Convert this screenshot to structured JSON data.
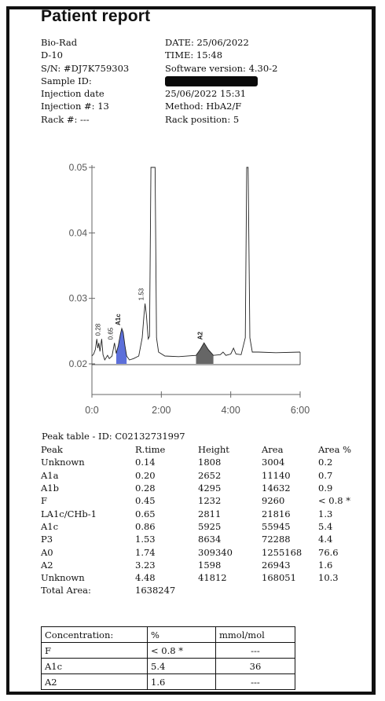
{
  "title": "Patient report",
  "info_left": [
    "Bio-Rad",
    "D-10",
    "S/N: #DJ7K759303",
    "Sample ID:",
    "Injection date",
    "Injection #: 13",
    "Rack #: ---"
  ],
  "info_right": [
    "DATE: 25/06/2022",
    "TIME:  15:48",
    "Software version: 4.30-2",
    "",
    "25/06/2022 15:31",
    "Method: HbA2/F",
    "Rack position: 5"
  ],
  "chart_data": {
    "type": "line",
    "y_ticks": [
      "0.05",
      "0.04",
      "0.03",
      "0.02"
    ],
    "y_values": [
      0.05,
      0.04,
      0.03,
      0.02
    ],
    "x_ticks": [
      "0:0",
      "2:00",
      "4:00",
      "6:00"
    ],
    "x_values": [
      0,
      2,
      4,
      6
    ],
    "xlim": [
      0,
      6
    ],
    "ylim": [
      0.015,
      0.05
    ],
    "baseline": 0.02,
    "x_unit": "minutes",
    "peak_labels": [
      {
        "label": "0.28",
        "x": 0.28
      },
      {
        "label": "0.65",
        "x": 0.65
      },
      {
        "label": "A1c",
        "x": 0.86
      },
      {
        "label": "1.53",
        "x": 1.53
      },
      {
        "label": "A2",
        "x": 3.23
      }
    ],
    "trace": [
      [
        0.0,
        0.0212
      ],
      [
        0.05,
        0.0215
      ],
      [
        0.1,
        0.0222
      ],
      [
        0.14,
        0.0238
      ],
      [
        0.17,
        0.0224
      ],
      [
        0.2,
        0.0232
      ],
      [
        0.23,
        0.0219
      ],
      [
        0.28,
        0.0238
      ],
      [
        0.32,
        0.0214
      ],
      [
        0.37,
        0.0206
      ],
      [
        0.45,
        0.0213
      ],
      [
        0.5,
        0.0208
      ],
      [
        0.58,
        0.0212
      ],
      [
        0.65,
        0.0232
      ],
      [
        0.7,
        0.0216
      ],
      [
        0.76,
        0.0228
      ],
      [
        0.82,
        0.0245
      ],
      [
        0.86,
        0.0254
      ],
      [
        0.9,
        0.0248
      ],
      [
        0.95,
        0.0228
      ],
      [
        1.0,
        0.0212
      ],
      [
        1.08,
        0.0206
      ],
      [
        1.2,
        0.0208
      ],
      [
        1.35,
        0.0212
      ],
      [
        1.45,
        0.024
      ],
      [
        1.5,
        0.0275
      ],
      [
        1.53,
        0.0292
      ],
      [
        1.57,
        0.0275
      ],
      [
        1.62,
        0.0238
      ],
      [
        1.66,
        0.0242
      ],
      [
        1.7,
        0.05
      ],
      [
        1.74,
        0.05
      ],
      [
        1.78,
        0.05
      ],
      [
        1.82,
        0.05
      ],
      [
        1.86,
        0.024
      ],
      [
        1.92,
        0.0218
      ],
      [
        2.1,
        0.0212
      ],
      [
        2.5,
        0.0211
      ],
      [
        3.0,
        0.0213
      ],
      [
        3.12,
        0.0222
      ],
      [
        3.23,
        0.0232
      ],
      [
        3.35,
        0.0222
      ],
      [
        3.5,
        0.0213
      ],
      [
        3.7,
        0.0214
      ],
      [
        3.78,
        0.0218
      ],
      [
        3.86,
        0.0213
      ],
      [
        4.0,
        0.0215
      ],
      [
        4.08,
        0.0224
      ],
      [
        4.15,
        0.0215
      ],
      [
        4.3,
        0.0214
      ],
      [
        4.42,
        0.024
      ],
      [
        4.46,
        0.05
      ],
      [
        4.5,
        0.05
      ],
      [
        4.55,
        0.024
      ],
      [
        4.62,
        0.0218
      ],
      [
        4.8,
        0.0218
      ],
      [
        5.3,
        0.0217
      ],
      [
        6.0,
        0.0218
      ]
    ]
  },
  "peak_table": {
    "title": "Peak table  -  ID: C02132731997",
    "headers": [
      "Peak",
      "R.time",
      "Height",
      "Area",
      "Area %"
    ],
    "rows": [
      [
        "Unknown",
        "0.14",
        "1808",
        "3004",
        "0.2"
      ],
      [
        "A1a",
        "0.20",
        "2652",
        "11140",
        "0.7"
      ],
      [
        "A1b",
        "0.28",
        "4295",
        "14632",
        "0.9"
      ],
      [
        "F",
        "0.45",
        "1232",
        "9260",
        "< 0.8 *"
      ],
      [
        "LA1c/CHb-1",
        "0.65",
        "2811",
        "21816",
        "1.3"
      ],
      [
        "A1c",
        "0.86",
        "5925",
        "55945",
        "5.4"
      ],
      [
        "P3",
        "1.53",
        "8634",
        "72288",
        "4.4"
      ],
      [
        "A0",
        "1.74",
        "309340",
        "1255168",
        "76.6"
      ],
      [
        "A2",
        "3.23",
        "1598",
        "26943",
        "1.6"
      ],
      [
        "Unknown",
        "4.48",
        "41812",
        "168051",
        "10.3"
      ]
    ],
    "total_label": "Total Area:",
    "total_value": "1638247"
  },
  "concentration": {
    "headers": [
      "Concentration:",
      "%",
      "mmol/mol"
    ],
    "rows": [
      [
        "F",
        "< 0.8 *",
        "---"
      ],
      [
        "A1c",
        "5.4",
        "36"
      ],
      [
        "A2",
        "1.6",
        "---"
      ]
    ]
  },
  "colors": {
    "a1c_fill": "#4a5fd6",
    "a2_fill": "#555555"
  }
}
